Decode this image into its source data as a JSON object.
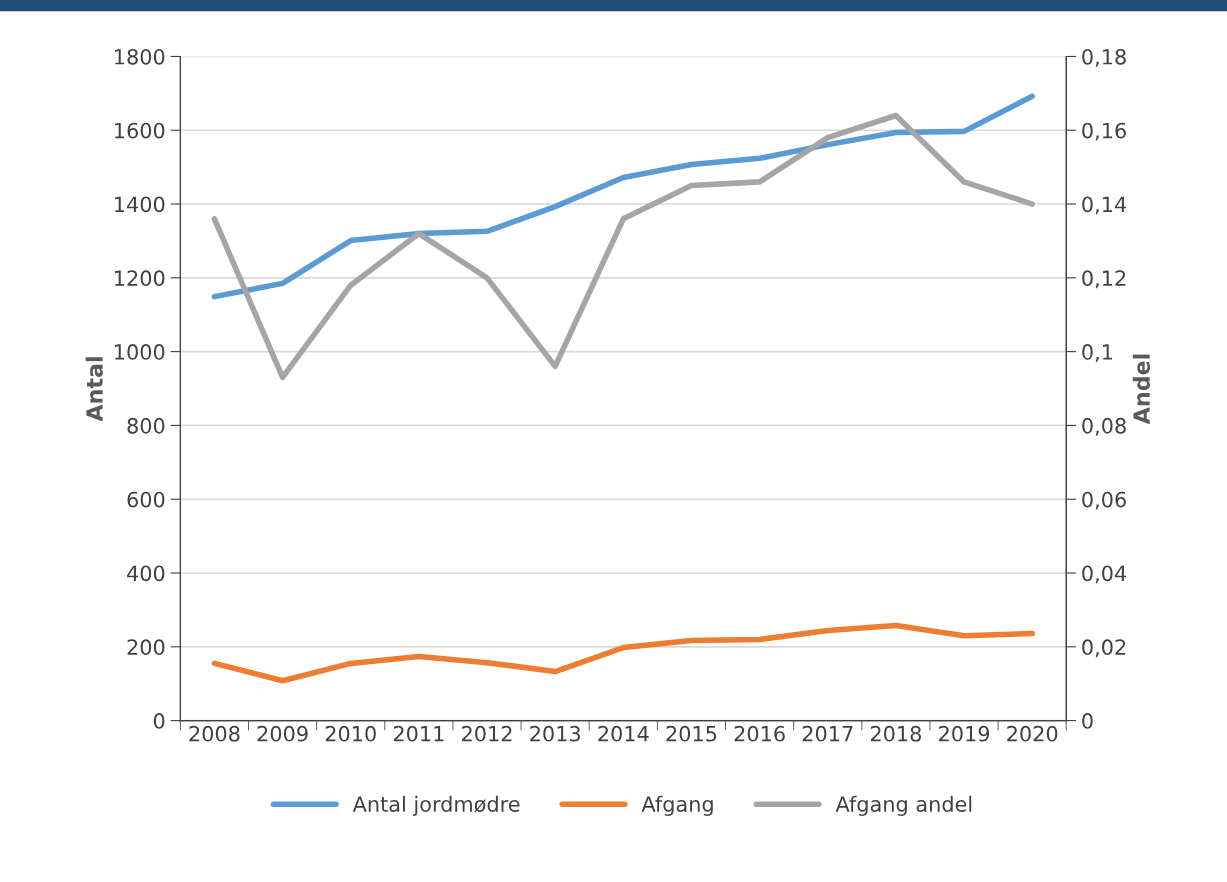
{
  "chart_data": {
    "type": "line",
    "ylabel": "Antal",
    "y2label": "Andel",
    "categories": [
      "2008",
      "2009",
      "2010",
      "2011",
      "2012",
      "2013",
      "2014",
      "2015",
      "2016",
      "2017",
      "2018",
      "2019",
      "2020"
    ],
    "series": [
      {
        "name": "Antal jordmødre",
        "color": "#5b9bd5",
        "values": [
          1149,
          1185,
          1301,
          1320,
          1326,
          1393,
          1472,
          1507,
          1524,
          1561,
          1594,
          1597,
          1692
        ]
      },
      {
        "name": "Afgang",
        "color": "#ed7d31",
        "values": [
          155,
          108,
          155,
          174,
          157,
          133,
          198,
          217,
          220,
          244,
          258,
          230,
          236
        ]
      },
      {
        "name": "Afgang andel",
        "color": "#a5a5a5",
        "axis": "y2",
        "values": [
          0.136,
          0.093,
          0.118,
          0.132,
          0.12,
          0.096,
          0.136,
          0.145,
          0.146,
          0.158,
          0.164,
          0.146,
          0.14
        ]
      }
    ],
    "ylim": [
      0,
      1800
    ],
    "yticks": [
      0,
      200,
      400,
      600,
      800,
      1000,
      1200,
      1400,
      1600,
      1800
    ],
    "y2lim": [
      0,
      0.18
    ],
    "y2ticks": [
      0,
      {
        "value": 0.02,
        "label": "0,02"
      },
      {
        "value": 0.04,
        "label": "0,04"
      },
      {
        "value": 0.06,
        "label": "0,06"
      },
      {
        "value": 0.08,
        "label": "0,08"
      },
      {
        "value": 0.1,
        "label": "0,1"
      },
      {
        "value": 0.12,
        "label": "0,12"
      },
      {
        "value": 0.14,
        "label": "0,14"
      },
      {
        "value": 0.16,
        "label": "0,16"
      },
      {
        "value": 0.18,
        "label": "0,18"
      }
    ],
    "grid": "y",
    "legend": "bottom",
    "marker": "none",
    "line_style": "solid"
  }
}
